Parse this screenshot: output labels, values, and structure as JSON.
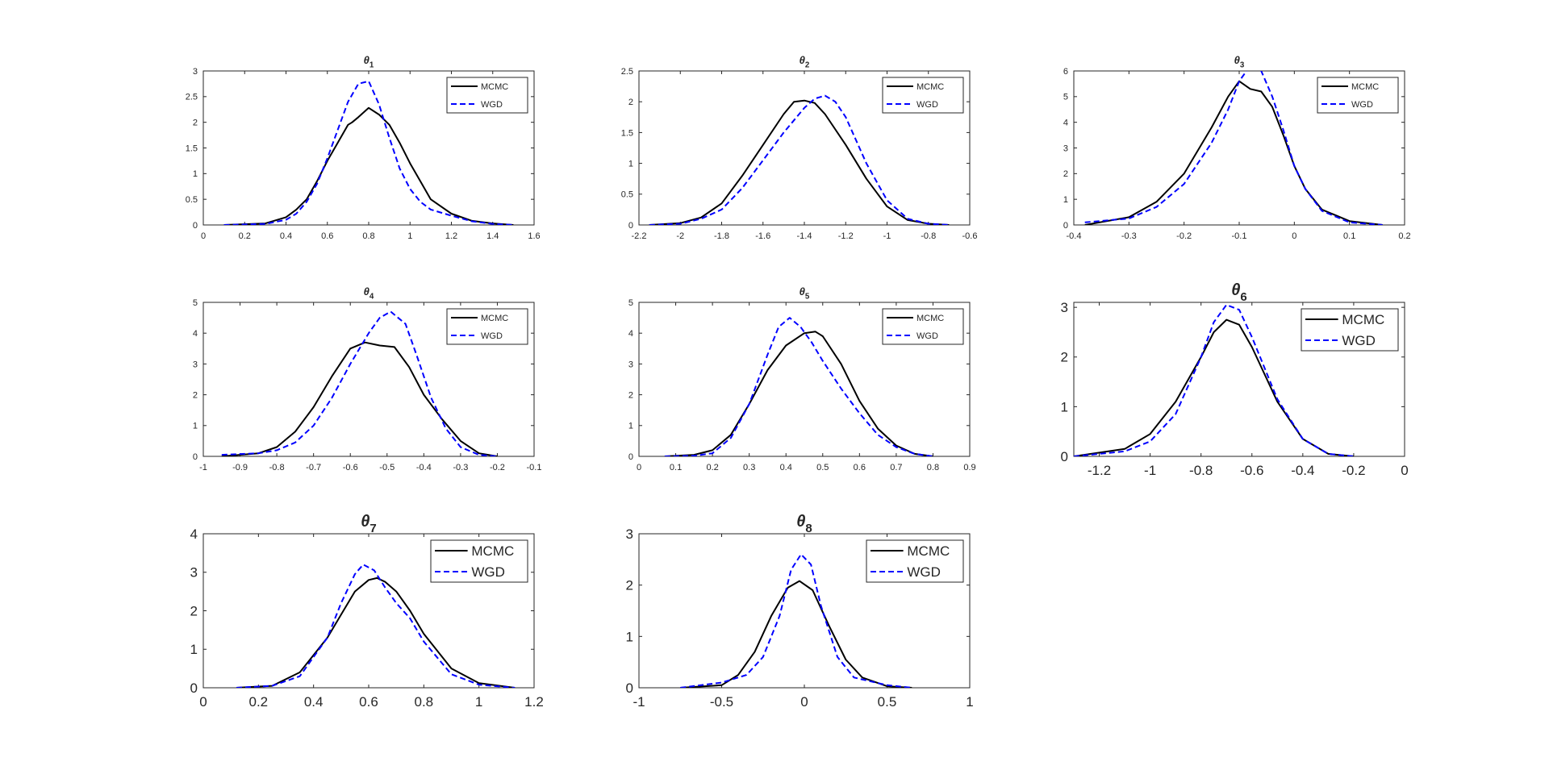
{
  "figure": {
    "type": "grid of density plots",
    "layout": "3x3, 8 panels"
  },
  "colors": {
    "MCMC": "#000000",
    "WGD": "#0000ff",
    "axis": "#262626"
  },
  "chart_data": [
    {
      "type": "line",
      "title": "θ",
      "subscript": "1",
      "xlim": [
        0,
        1.6
      ],
      "ylim": [
        0,
        3
      ],
      "xticks": [
        "0",
        "0.2",
        "0.4",
        "0.6",
        "0.8",
        "1",
        "1.2",
        "1.4",
        "1.6"
      ],
      "yticks": [
        "0",
        "0.5",
        "1",
        "1.5",
        "2",
        "2.5",
        "3"
      ],
      "legend": "top-right",
      "series": [
        {
          "name": "MCMC",
          "style": "solid",
          "x": [
            0.1,
            0.3,
            0.4,
            0.45,
            0.5,
            0.55,
            0.6,
            0.65,
            0.7,
            0.72,
            0.75,
            0.8,
            0.85,
            0.9,
            0.95,
            1.0,
            1.05,
            1.1,
            1.2,
            1.3,
            1.4,
            1.5
          ],
          "y": [
            0,
            0.03,
            0.15,
            0.3,
            0.5,
            0.85,
            1.25,
            1.6,
            1.95,
            2.0,
            2.1,
            2.28,
            2.15,
            1.95,
            1.6,
            1.2,
            0.85,
            0.5,
            0.22,
            0.08,
            0.03,
            0
          ]
        },
        {
          "name": "WGD",
          "style": "dashed",
          "x": [
            0.1,
            0.3,
            0.4,
            0.45,
            0.5,
            0.55,
            0.6,
            0.65,
            0.7,
            0.75,
            0.8,
            0.85,
            0.9,
            0.95,
            1.0,
            1.05,
            1.1,
            1.2,
            1.3,
            1.4,
            1.5
          ],
          "y": [
            0,
            0.02,
            0.1,
            0.22,
            0.45,
            0.8,
            1.3,
            1.85,
            2.4,
            2.75,
            2.8,
            2.35,
            1.7,
            1.1,
            0.7,
            0.45,
            0.3,
            0.18,
            0.07,
            0.02,
            0
          ]
        }
      ]
    },
    {
      "type": "line",
      "title": "θ",
      "subscript": "2",
      "xlim": [
        -2.2,
        -0.6
      ],
      "ylim": [
        0,
        2.5
      ],
      "xticks": [
        "-2.2",
        "-2",
        "-1.8",
        "-1.6",
        "-1.4",
        "-1.2",
        "-1",
        "-0.8",
        "-0.6"
      ],
      "yticks": [
        "0",
        "0.5",
        "1",
        "1.5",
        "2",
        "2.5"
      ],
      "legend": "top-right",
      "series": [
        {
          "name": "MCMC",
          "style": "solid",
          "x": [
            -2.15,
            -2.0,
            -1.9,
            -1.8,
            -1.7,
            -1.6,
            -1.5,
            -1.45,
            -1.4,
            -1.35,
            -1.3,
            -1.2,
            -1.1,
            -1.0,
            -0.9,
            -0.8,
            -0.7
          ],
          "y": [
            0,
            0.03,
            0.12,
            0.35,
            0.8,
            1.3,
            1.8,
            2.0,
            2.02,
            1.98,
            1.8,
            1.3,
            0.75,
            0.3,
            0.08,
            0.02,
            0
          ]
        },
        {
          "name": "WGD",
          "style": "dashed",
          "x": [
            -2.15,
            -2.0,
            -1.9,
            -1.8,
            -1.7,
            -1.6,
            -1.5,
            -1.4,
            -1.35,
            -1.3,
            -1.25,
            -1.2,
            -1.1,
            -1.0,
            -0.9,
            -0.8,
            -0.7
          ],
          "y": [
            0,
            0.02,
            0.1,
            0.25,
            0.6,
            1.05,
            1.5,
            1.9,
            2.05,
            2.1,
            2.0,
            1.75,
            1.0,
            0.4,
            0.1,
            0.02,
            0
          ]
        }
      ]
    },
    {
      "type": "line",
      "title": "θ",
      "subscript": "3",
      "xlim": [
        -0.4,
        0.2
      ],
      "ylim": [
        0,
        6
      ],
      "xticks": [
        "-0.4",
        "-0.3",
        "-0.2",
        "-0.1",
        "0",
        "0.1",
        "0.2"
      ],
      "yticks": [
        "0",
        "1",
        "2",
        "3",
        "4",
        "5",
        "6"
      ],
      "legend": "top-right",
      "series": [
        {
          "name": "MCMC",
          "style": "solid",
          "x": [
            -0.38,
            -0.3,
            -0.25,
            -0.2,
            -0.15,
            -0.12,
            -0.1,
            -0.08,
            -0.06,
            -0.04,
            -0.02,
            0,
            0.02,
            0.05,
            0.1,
            0.16
          ],
          "y": [
            0,
            0.3,
            0.9,
            2.0,
            3.8,
            5.0,
            5.6,
            5.3,
            5.2,
            4.6,
            3.5,
            2.3,
            1.4,
            0.6,
            0.15,
            0
          ]
        },
        {
          "name": "WGD",
          "style": "dashed",
          "x": [
            -0.38,
            -0.3,
            -0.25,
            -0.2,
            -0.15,
            -0.12,
            -0.1,
            -0.08,
            -0.06,
            -0.04,
            -0.02,
            0,
            0.02,
            0.05,
            0.1,
            0.16
          ],
          "y": [
            0.1,
            0.25,
            0.7,
            1.6,
            3.2,
            4.5,
            5.6,
            6.2,
            6.0,
            5.0,
            3.7,
            2.3,
            1.4,
            0.55,
            0.1,
            0
          ]
        }
      ]
    },
    {
      "type": "line",
      "title": "θ",
      "subscript": "4",
      "xlim": [
        -1,
        -0.1
      ],
      "ylim": [
        0,
        5
      ],
      "xticks": [
        "-1",
        "-0.9",
        "-0.8",
        "-0.7",
        "-0.6",
        "-0.5",
        "-0.4",
        "-0.3",
        "-0.2",
        "-0.1"
      ],
      "yticks": [
        "0",
        "1",
        "2",
        "3",
        "4",
        "5"
      ],
      "legend": "top-right",
      "series": [
        {
          "name": "MCMC",
          "style": "solid",
          "x": [
            -0.95,
            -0.85,
            -0.8,
            -0.75,
            -0.7,
            -0.65,
            -0.6,
            -0.56,
            -0.52,
            -0.48,
            -0.44,
            -0.4,
            -0.35,
            -0.3,
            -0.25,
            -0.2
          ],
          "y": [
            0,
            0.1,
            0.3,
            0.8,
            1.6,
            2.6,
            3.5,
            3.7,
            3.6,
            3.55,
            2.9,
            2.0,
            1.2,
            0.5,
            0.1,
            0
          ]
        },
        {
          "name": "WGD",
          "style": "dashed",
          "x": [
            -0.95,
            -0.85,
            -0.8,
            -0.75,
            -0.7,
            -0.65,
            -0.6,
            -0.55,
            -0.52,
            -0.49,
            -0.45,
            -0.42,
            -0.38,
            -0.34,
            -0.3,
            -0.25,
            -0.2
          ],
          "y": [
            0.05,
            0.1,
            0.2,
            0.45,
            1.0,
            1.9,
            3.0,
            4.0,
            4.5,
            4.7,
            4.3,
            3.3,
            1.9,
            0.9,
            0.3,
            0.05,
            0
          ]
        }
      ]
    },
    {
      "type": "line",
      "title": "θ",
      "subscript": "5",
      "xlim": [
        0,
        0.9
      ],
      "ylim": [
        0,
        5
      ],
      "xticks": [
        "0",
        "0.1",
        "0.2",
        "0.3",
        "0.4",
        "0.5",
        "0.6",
        "0.7",
        "0.8",
        "0.9"
      ],
      "yticks": [
        "0",
        "1",
        "2",
        "3",
        "4",
        "5"
      ],
      "legend": "top-right",
      "series": [
        {
          "name": "MCMC",
          "style": "solid",
          "x": [
            0.07,
            0.15,
            0.2,
            0.25,
            0.3,
            0.35,
            0.4,
            0.45,
            0.48,
            0.5,
            0.55,
            0.6,
            0.65,
            0.7,
            0.75,
            0.8
          ],
          "y": [
            0,
            0.05,
            0.2,
            0.7,
            1.7,
            2.8,
            3.6,
            4.0,
            4.05,
            3.9,
            3.0,
            1.8,
            0.9,
            0.35,
            0.08,
            0
          ]
        },
        {
          "name": "WGD",
          "style": "dashed",
          "x": [
            0.07,
            0.15,
            0.2,
            0.25,
            0.3,
            0.35,
            0.38,
            0.41,
            0.44,
            0.47,
            0.5,
            0.55,
            0.6,
            0.65,
            0.7,
            0.75,
            0.8
          ],
          "y": [
            0,
            0.02,
            0.1,
            0.6,
            1.7,
            3.3,
            4.2,
            4.5,
            4.2,
            3.7,
            3.1,
            2.2,
            1.4,
            0.7,
            0.3,
            0.08,
            0
          ]
        }
      ]
    },
    {
      "type": "line",
      "title": "θ",
      "subscript": "6",
      "xlim": [
        -1.3,
        0
      ],
      "ylim": [
        0,
        3.1
      ],
      "xticks": [
        "-1.2",
        "-1",
        "-0.8",
        "-0.6",
        "-0.4",
        "-0.2",
        "0"
      ],
      "yticks": [
        "0",
        "1",
        "2",
        "3"
      ],
      "legend": "top-right",
      "series": [
        {
          "name": "MCMC",
          "style": "solid",
          "x": [
            -1.3,
            -1.1,
            -1.0,
            -0.9,
            -0.8,
            -0.75,
            -0.7,
            -0.65,
            -0.6,
            -0.5,
            -0.4,
            -0.3,
            -0.2
          ],
          "y": [
            0,
            0.15,
            0.45,
            1.1,
            2.0,
            2.5,
            2.75,
            2.65,
            2.2,
            1.1,
            0.35,
            0.05,
            0
          ]
        },
        {
          "name": "WGD",
          "style": "dashed",
          "x": [
            -1.3,
            -1.1,
            -1.0,
            -0.9,
            -0.8,
            -0.75,
            -0.7,
            -0.65,
            -0.6,
            -0.5,
            -0.4,
            -0.3,
            -0.2
          ],
          "y": [
            0,
            0.1,
            0.3,
            0.85,
            2.0,
            2.7,
            3.05,
            2.95,
            2.4,
            1.15,
            0.35,
            0.05,
            0
          ]
        }
      ]
    },
    {
      "type": "line",
      "title": "θ",
      "subscript": "7",
      "xlim": [
        0,
        1.2
      ],
      "ylim": [
        0,
        4
      ],
      "xticks": [
        "0",
        "0.2",
        "0.4",
        "0.6",
        "0.8",
        "1",
        "1.2"
      ],
      "yticks": [
        "0",
        "1",
        "2",
        "3",
        "4"
      ],
      "legend": "top-right",
      "series": [
        {
          "name": "MCMC",
          "style": "solid",
          "x": [
            0.12,
            0.25,
            0.35,
            0.45,
            0.5,
            0.55,
            0.6,
            0.63,
            0.66,
            0.7,
            0.75,
            0.8,
            0.9,
            1.0,
            1.13
          ],
          "y": [
            0,
            0.05,
            0.4,
            1.3,
            1.9,
            2.5,
            2.8,
            2.85,
            2.75,
            2.5,
            2.0,
            1.4,
            0.5,
            0.12,
            0
          ]
        },
        {
          "name": "WGD",
          "style": "dashed",
          "x": [
            0.12,
            0.25,
            0.35,
            0.45,
            0.5,
            0.55,
            0.58,
            0.62,
            0.66,
            0.7,
            0.75,
            0.8,
            0.9,
            1.0,
            1.13
          ],
          "y": [
            0,
            0.05,
            0.3,
            1.3,
            2.2,
            2.95,
            3.2,
            3.05,
            2.6,
            2.2,
            1.8,
            1.2,
            0.35,
            0.08,
            0
          ]
        }
      ]
    },
    {
      "type": "line",
      "title": "θ",
      "subscript": "8",
      "xlim": [
        -1,
        1
      ],
      "ylim": [
        0,
        3
      ],
      "xticks": [
        "-1",
        "-0.5",
        "0",
        "0.5",
        "1"
      ],
      "yticks": [
        "0",
        "1",
        "2",
        "3"
      ],
      "legend": "top-right",
      "series": [
        {
          "name": "MCMC",
          "style": "solid",
          "x": [
            -0.75,
            -0.5,
            -0.4,
            -0.3,
            -0.2,
            -0.1,
            -0.03,
            0.05,
            0.15,
            0.25,
            0.35,
            0.5,
            0.65
          ],
          "y": [
            0,
            0.05,
            0.25,
            0.7,
            1.4,
            1.95,
            2.08,
            1.9,
            1.2,
            0.55,
            0.2,
            0.03,
            0
          ]
        },
        {
          "name": "WGD",
          "style": "dashed",
          "x": [
            -0.75,
            -0.5,
            -0.35,
            -0.25,
            -0.15,
            -0.08,
            -0.02,
            0.04,
            0.1,
            0.2,
            0.3,
            0.5,
            0.65
          ],
          "y": [
            0,
            0.1,
            0.25,
            0.6,
            1.4,
            2.3,
            2.6,
            2.4,
            1.6,
            0.6,
            0.2,
            0.05,
            0
          ]
        }
      ]
    }
  ]
}
